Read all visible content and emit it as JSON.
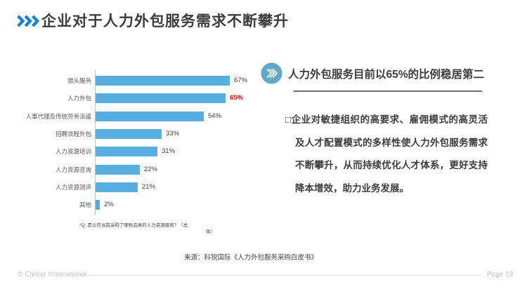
{
  "slide": {
    "title": "企业对于人力外包服务需求不断攀升",
    "footer": {
      "copyright": "© Career International",
      "page": "Page 13"
    }
  },
  "chart_data": {
    "type": "bar",
    "orientation": "horizontal",
    "categories": [
      "猎头服务",
      "人力外包",
      "人事代理及传统劳务派遣",
      "招聘流程外包",
      "人力资源培训",
      "人力资源咨询",
      "人力资源测评",
      "其他"
    ],
    "values": [
      67,
      65,
      54,
      33,
      31,
      22,
      21,
      2
    ],
    "value_labels": [
      "67%",
      "65%",
      "54%",
      "33%",
      "31%",
      "22%",
      "21%",
      "2%"
    ],
    "highlight_index": 1,
    "bar_color": "#57aedf",
    "value_label_color": "#404040",
    "highlight_label_color": "#ff0000",
    "xlim": [
      0,
      70
    ],
    "grid": "off",
    "caption_line1": "*Q: 贵公司当前采购了哪些品类的人力资源服务？（总",
    "caption_line2": "体）",
    "source": "来源：科锐国际《人力外包服务采购白皮书》"
  },
  "right_panel": {
    "heading": "人力外包服务目前以65%的比例稳居第二",
    "bullet_marker": "□",
    "bullet_text": "企业对敏捷组织的高要求、雇佣模式的高灵活及人才配置模式的多样性使人力外包服务需求不断攀升，从而持续优化人才体系，更好支持降本增效，助力业务发展。"
  },
  "colors": {
    "accent_blue": "#1583dc",
    "circle_icon_blue": "#5fa9c6",
    "bar_blue": "#57aedf",
    "highlight_red": "#ff0000"
  }
}
